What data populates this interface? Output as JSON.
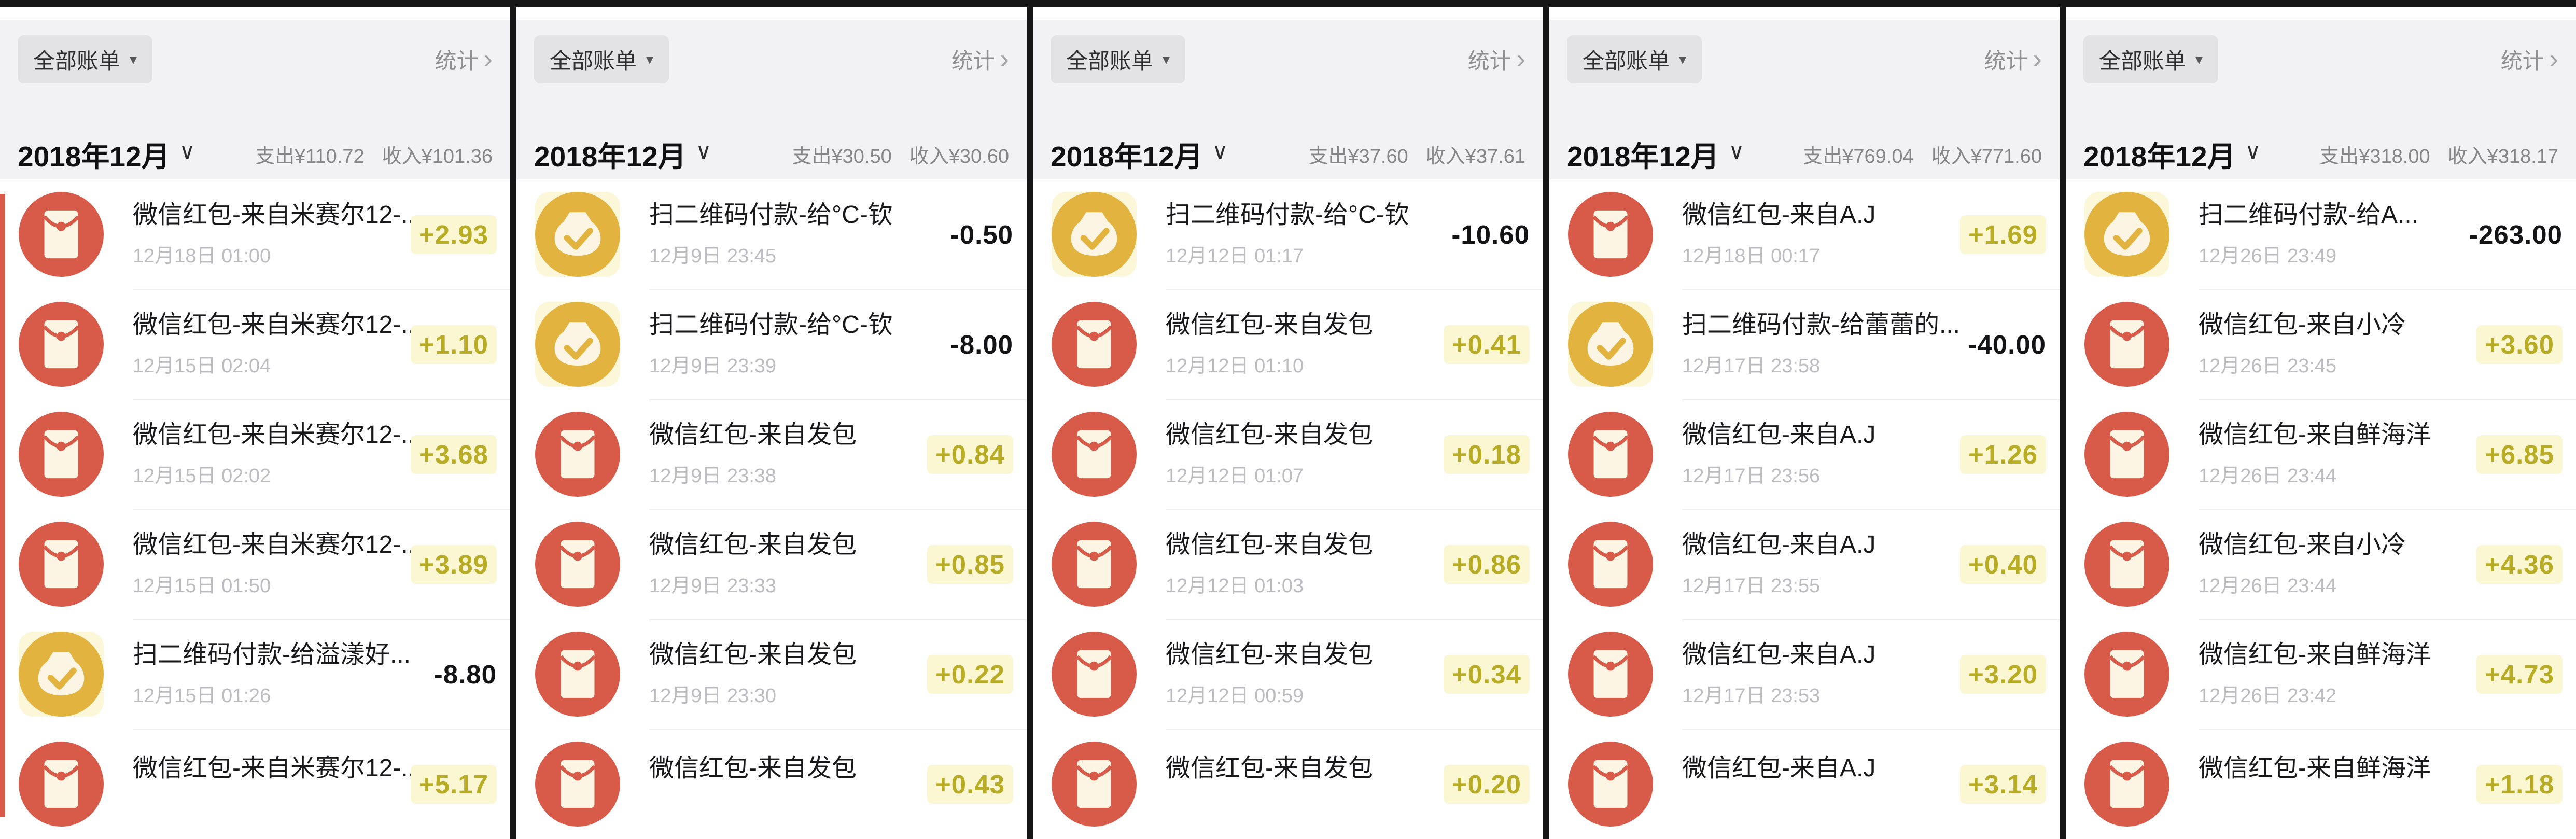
{
  "colors": {
    "positive_amount_text": "#b9ac25",
    "positive_amount_highlight": "#fbf7d2",
    "negative_amount_text": "#141416",
    "red_envelope_icon": "#d85b49",
    "money_bag_icon": "#e2b33e",
    "header_background": "#f2f2f4",
    "panel_separator": "#161616"
  },
  "header": {
    "filter_label": "全部账单",
    "filter_caret": "▾",
    "stats_label": "统计",
    "chevron": "›",
    "month_caret": "∨"
  },
  "panels": [
    {
      "month_label": "2018年12月",
      "expense": "支出¥110.72",
      "income": "收入¥101.36",
      "transactions": [
        {
          "icon": "red-envelope-icon",
          "title": "微信红包-来自米赛尔12-...",
          "date": "12月18日 01:00",
          "amount": "+2.93"
        },
        {
          "icon": "red-envelope-icon",
          "title": "微信红包-来自米赛尔12-...",
          "date": "12月15日 02:04",
          "amount": "+1.10"
        },
        {
          "icon": "red-envelope-icon",
          "title": "微信红包-来自米赛尔12-...",
          "date": "12月15日 02:02",
          "amount": "+3.68"
        },
        {
          "icon": "red-envelope-icon",
          "title": "微信红包-来自米赛尔12-...",
          "date": "12月15日 01:50",
          "amount": "+3.89"
        },
        {
          "icon": "money-bag-icon",
          "title": "扫二维码付款-给溢漾好...",
          "date": "12月15日 01:26",
          "amount": "-8.80"
        },
        {
          "icon": "red-envelope-icon",
          "title": "微信红包-来自米赛尔12-...",
          "date": "",
          "amount": "+5.17"
        }
      ]
    },
    {
      "month_label": "2018年12月",
      "expense": "支出¥30.50",
      "income": "收入¥30.60",
      "transactions": [
        {
          "icon": "money-bag-icon",
          "title": "扫二维码付款-给°C-钦",
          "date": "12月9日 23:45",
          "amount": "-0.50"
        },
        {
          "icon": "money-bag-icon",
          "title": "扫二维码付款-给°C-钦",
          "date": "12月9日 23:39",
          "amount": "-8.00"
        },
        {
          "icon": "red-envelope-icon",
          "title": "微信红包-来自发包",
          "date": "12月9日 23:38",
          "amount": "+0.84"
        },
        {
          "icon": "red-envelope-icon",
          "title": "微信红包-来自发包",
          "date": "12月9日 23:33",
          "amount": "+0.85"
        },
        {
          "icon": "red-envelope-icon",
          "title": "微信红包-来自发包",
          "date": "12月9日 23:30",
          "amount": "+0.22"
        },
        {
          "icon": "red-envelope-icon",
          "title": "微信红包-来自发包",
          "date": "",
          "amount": "+0.43"
        }
      ]
    },
    {
      "month_label": "2018年12月",
      "expense": "支出¥37.60",
      "income": "收入¥37.61",
      "transactions": [
        {
          "icon": "money-bag-icon",
          "title": "扫二维码付款-给°C-钦",
          "date": "12月12日 01:17",
          "amount": "-10.60"
        },
        {
          "icon": "red-envelope-icon",
          "title": "微信红包-来自发包",
          "date": "12月12日 01:10",
          "amount": "+0.41"
        },
        {
          "icon": "red-envelope-icon",
          "title": "微信红包-来自发包",
          "date": "12月12日 01:07",
          "amount": "+0.18"
        },
        {
          "icon": "red-envelope-icon",
          "title": "微信红包-来自发包",
          "date": "12月12日 01:03",
          "amount": "+0.86"
        },
        {
          "icon": "red-envelope-icon",
          "title": "微信红包-来自发包",
          "date": "12月12日 00:59",
          "amount": "+0.34"
        },
        {
          "icon": "red-envelope-icon",
          "title": "微信红包-来自发包",
          "date": "",
          "amount": "+0.20"
        }
      ]
    },
    {
      "month_label": "2018年12月",
      "expense": "支出¥769.04",
      "income": "收入¥771.60",
      "transactions": [
        {
          "icon": "red-envelope-icon",
          "title": "微信红包-来自A.J",
          "date": "12月18日 00:17",
          "amount": "+1.69"
        },
        {
          "icon": "money-bag-icon",
          "title": "扫二维码付款-给蕾蕾的...",
          "date": "12月17日 23:58",
          "amount": "-40.00"
        },
        {
          "icon": "red-envelope-icon",
          "title": "微信红包-来自A.J",
          "date": "12月17日 23:56",
          "amount": "+1.26"
        },
        {
          "icon": "red-envelope-icon",
          "title": "微信红包-来自A.J",
          "date": "12月17日 23:55",
          "amount": "+0.40"
        },
        {
          "icon": "red-envelope-icon",
          "title": "微信红包-来自A.J",
          "date": "12月17日 23:53",
          "amount": "+3.20"
        },
        {
          "icon": "red-envelope-icon",
          "title": "微信红包-来自A.J",
          "date": "",
          "amount": "+3.14"
        }
      ]
    },
    {
      "month_label": "2018年12月",
      "expense": "支出¥318.00",
      "income": "收入¥318.17",
      "transactions": [
        {
          "icon": "money-bag-icon",
          "title": "扫二维码付款-给A...",
          "date": "12月26日 23:49",
          "amount": "-263.00"
        },
        {
          "icon": "red-envelope-icon",
          "title": "微信红包-来自小冷",
          "date": "12月26日 23:45",
          "amount": "+3.60"
        },
        {
          "icon": "red-envelope-icon",
          "title": "微信红包-来自鲜海洋",
          "date": "12月26日 23:44",
          "amount": "+6.85"
        },
        {
          "icon": "red-envelope-icon",
          "title": "微信红包-来自小冷",
          "date": "12月26日 23:44",
          "amount": "+4.36"
        },
        {
          "icon": "red-envelope-icon",
          "title": "微信红包-来自鲜海洋",
          "date": "12月26日 23:42",
          "amount": "+4.73"
        },
        {
          "icon": "red-envelope-icon",
          "title": "微信红包-来自鲜海洋",
          "date": "",
          "amount": "+1.18"
        }
      ]
    }
  ]
}
